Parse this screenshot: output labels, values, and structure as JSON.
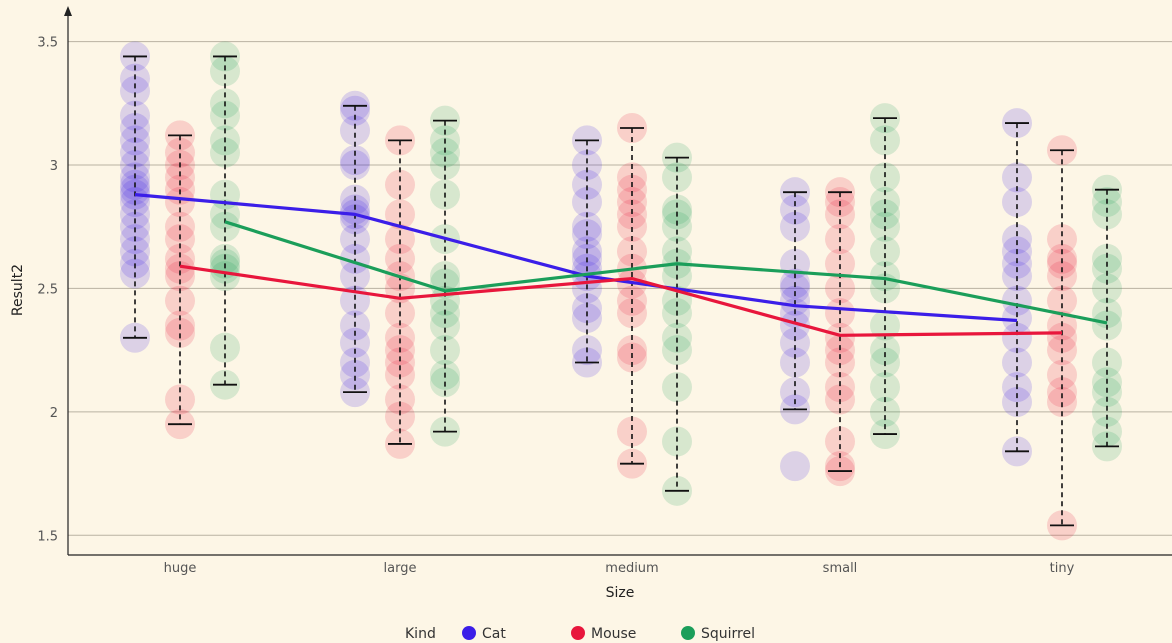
{
  "chart_data": {
    "type": "scatter",
    "title": "",
    "xlabel": "Size",
    "ylabel": "Result2",
    "categories": [
      "huge",
      "large",
      "medium",
      "small",
      "tiny"
    ],
    "ylim": [
      1.42,
      3.62
    ],
    "yticks": [
      {
        "value": 1.5,
        "label": "1.5"
      },
      {
        "value": 2,
        "label": "2"
      },
      {
        "value": 2.5,
        "label": "2.5"
      },
      {
        "value": 3,
        "label": "3"
      },
      {
        "value": 3.5,
        "label": "3.5"
      }
    ],
    "grid": "horizontal",
    "legend": {
      "title": "Kind",
      "position": "bottom"
    },
    "series": [
      {
        "name": "Cat",
        "color": "#3b1ee8",
        "mean": [
          2.88,
          2.8,
          2.55,
          2.43,
          2.37
        ],
        "error_low": [
          2.3,
          2.08,
          2.2,
          2.01,
          1.84
        ],
        "error_high": [
          3.44,
          3.24,
          3.1,
          2.89,
          3.17
        ],
        "points": [
          [
            2.3,
            2.56,
            2.6,
            2.65,
            2.7,
            2.75,
            2.8,
            2.85,
            2.88,
            2.9,
            2.92,
            2.95,
            3.0,
            3.05,
            3.1,
            3.15,
            3.2,
            3.3,
            3.35,
            3.44
          ],
          [
            2.08,
            2.15,
            2.2,
            2.28,
            2.35,
            2.45,
            2.55,
            2.62,
            2.7,
            2.78,
            2.8,
            2.82,
            2.86,
            3.0,
            3.02,
            3.14,
            3.22,
            3.24
          ],
          [
            2.2,
            2.25,
            2.38,
            2.42,
            2.5,
            2.55,
            2.58,
            2.62,
            2.65,
            2.72,
            2.75,
            2.85,
            2.92,
            3.0,
            3.1
          ],
          [
            1.78,
            2.01,
            2.08,
            2.2,
            2.28,
            2.35,
            2.4,
            2.45,
            2.5,
            2.52,
            2.6,
            2.75,
            2.82,
            2.89
          ],
          [
            1.84,
            2.04,
            2.1,
            2.2,
            2.3,
            2.38,
            2.45,
            2.55,
            2.6,
            2.65,
            2.7,
            2.85,
            2.95,
            3.17
          ]
        ]
      },
      {
        "name": "Mouse",
        "color": "#e8163c",
        "mean": [
          2.59,
          2.46,
          2.54,
          2.31,
          2.32
        ],
        "error_low": [
          1.95,
          1.87,
          1.79,
          1.76,
          1.54
        ],
        "error_high": [
          3.12,
          3.1,
          3.15,
          2.89,
          3.06
        ],
        "points": [
          [
            1.95,
            2.05,
            2.32,
            2.35,
            2.45,
            2.55,
            2.58,
            2.62,
            2.7,
            2.75,
            2.85,
            2.9,
            2.95,
            3.0,
            3.05,
            3.12
          ],
          [
            1.87,
            1.98,
            2.05,
            2.15,
            2.2,
            2.25,
            2.3,
            2.4,
            2.5,
            2.55,
            2.62,
            2.7,
            2.8,
            2.92,
            3.1
          ],
          [
            1.79,
            1.92,
            2.22,
            2.25,
            2.4,
            2.45,
            2.52,
            2.58,
            2.65,
            2.75,
            2.8,
            2.85,
            2.9,
            2.95,
            3.15
          ],
          [
            1.76,
            1.78,
            1.88,
            2.05,
            2.1,
            2.2,
            2.25,
            2.3,
            2.4,
            2.5,
            2.6,
            2.7,
            2.8,
            2.85,
            2.89
          ],
          [
            1.54,
            2.04,
            2.08,
            2.15,
            2.25,
            2.3,
            2.35,
            2.45,
            2.55,
            2.6,
            2.62,
            2.7,
            3.06
          ]
        ]
      },
      {
        "name": "Squirrel",
        "color": "#1b9e5a",
        "mean": [
          2.77,
          2.49,
          2.6,
          2.54,
          2.36
        ],
        "error_low": [
          2.11,
          1.92,
          1.68,
          1.91,
          1.86
        ],
        "error_high": [
          3.44,
          3.18,
          3.03,
          3.19,
          2.9
        ],
        "points": [
          [
            2.11,
            2.26,
            2.55,
            2.58,
            2.6,
            2.62,
            2.75,
            2.8,
            2.88,
            3.05,
            3.1,
            3.2,
            3.25,
            3.38,
            3.44
          ],
          [
            1.92,
            2.12,
            2.15,
            2.25,
            2.35,
            2.4,
            2.45,
            2.52,
            2.55,
            2.7,
            2.88,
            3.0,
            3.05,
            3.1,
            3.18
          ],
          [
            1.68,
            1.88,
            2.1,
            2.25,
            2.3,
            2.4,
            2.45,
            2.55,
            2.6,
            2.65,
            2.75,
            2.8,
            2.82,
            2.95,
            3.03
          ],
          [
            1.91,
            2.0,
            2.1,
            2.2,
            2.25,
            2.35,
            2.5,
            2.55,
            2.65,
            2.75,
            2.8,
            2.85,
            2.95,
            3.1,
            3.19
          ],
          [
            1.86,
            1.92,
            2.0,
            2.08,
            2.12,
            2.2,
            2.35,
            2.4,
            2.5,
            2.58,
            2.62,
            2.8,
            2.85,
            2.9
          ]
        ]
      }
    ]
  }
}
